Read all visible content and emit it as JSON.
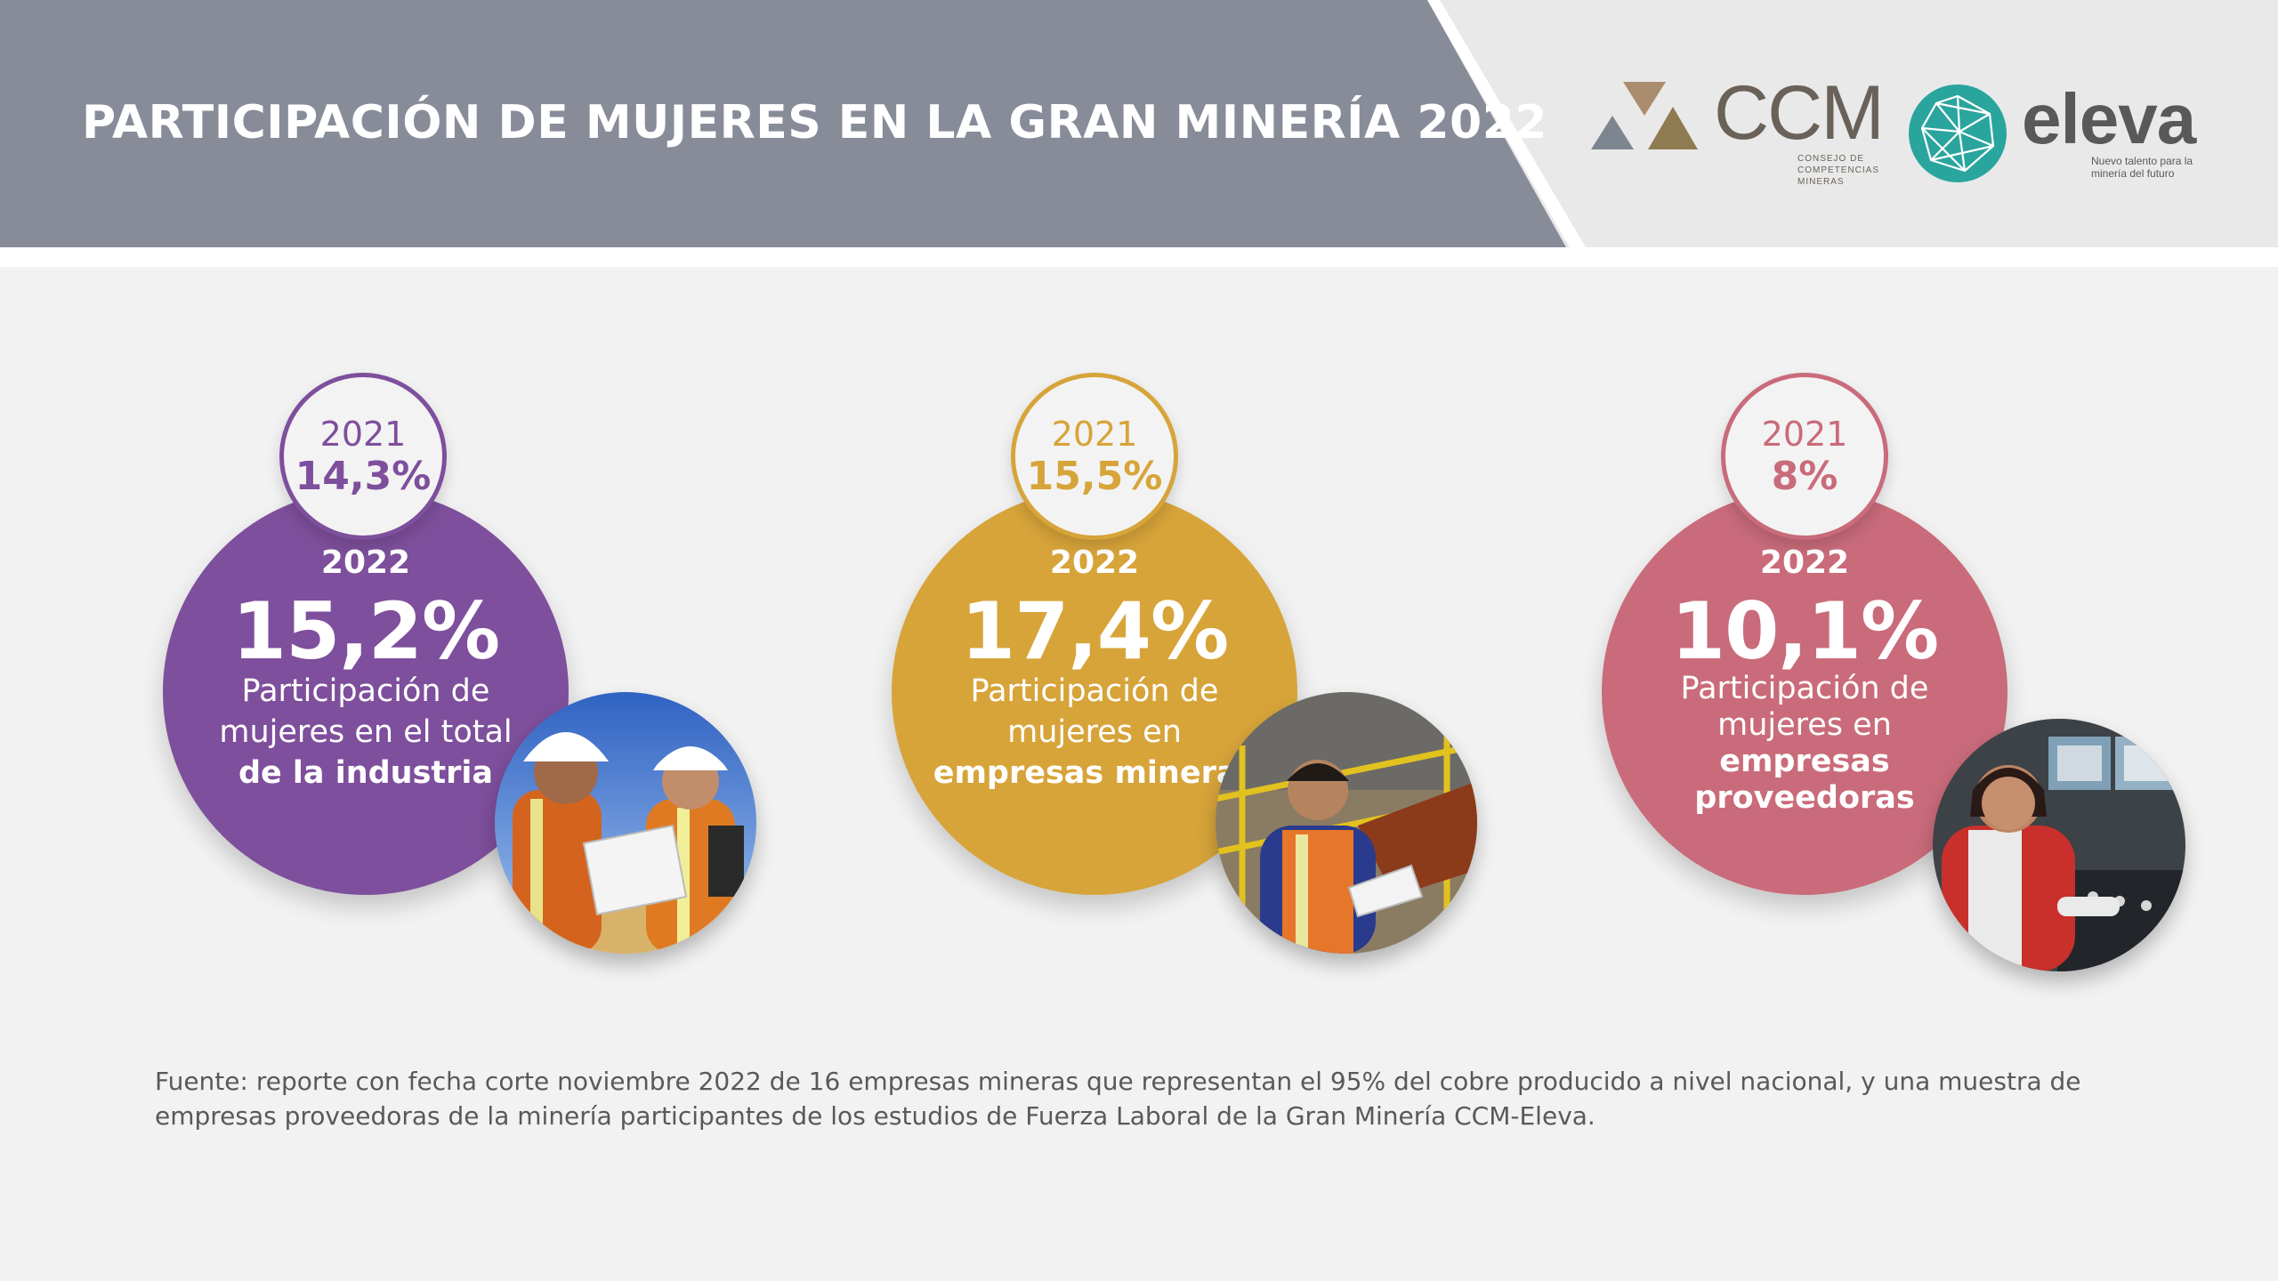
{
  "header": {
    "title": "PARTICIPACIÓN DE MUJERES EN LA GRAN MINERÍA 2022"
  },
  "logos": {
    "ccm": {
      "name": "CCM",
      "subtitle_lines": [
        "CONSEJO DE",
        "COMPETENCIAS",
        "MINERAS"
      ]
    },
    "eleva": {
      "name": "eleva",
      "subtitle_lines": [
        "Nuevo talento para la",
        "minería del futuro"
      ]
    }
  },
  "cards": [
    {
      "prev_year": "2021",
      "prev_pct": "14,3%",
      "year": "2022",
      "pct": "15,2%",
      "desc_normal": "Participación de mujeres en el total ",
      "desc_bold": "de la industria",
      "color": "#7e4f9c",
      "photo_icon": "two-miners-photo"
    },
    {
      "prev_year": "2021",
      "prev_pct": "15,5%",
      "year": "2022",
      "pct": "17,4%",
      "desc_normal": "Participación de mujeres en ",
      "desc_bold": "empresas mineras",
      "color": "#d7a43a",
      "photo_icon": "woman-miner-photo"
    },
    {
      "prev_year": "2021",
      "prev_pct": "8%",
      "year": "2022",
      "pct": "10,1%",
      "desc_normal": "Participación de mujeres en ",
      "desc_bold": "empresas proveedoras",
      "color": "#c96b7a",
      "photo_icon": "woman-operator-photo"
    }
  ],
  "source": "Fuente: reporte con fecha corte noviembre 2022 de 16 empresas mineras que representan el 95% del cobre producido a nivel nacional, y una muestra de empresas proveedoras de la minería participantes de los estudios de Fuerza Laboral de la Gran Minería CCM-Eleva."
}
